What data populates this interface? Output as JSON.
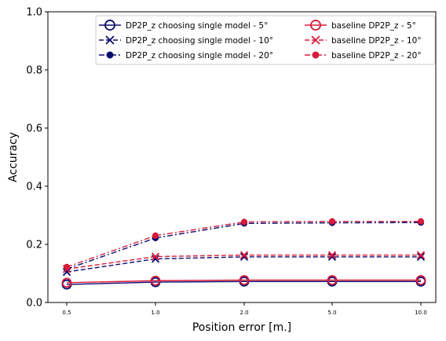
{
  "chart_data": {
    "type": "line",
    "title": "",
    "xlabel": "Position error [m.]",
    "ylabel": "Accuracy",
    "ylim": [
      0,
      1
    ],
    "y_ticks": [
      "0.0",
      "0.2",
      "0.4",
      "0.6",
      "0.8",
      "1.0"
    ],
    "categories": [
      "0.5",
      "1.0",
      "2.0",
      "5.0",
      "10.0"
    ],
    "grid": false,
    "legend_position": "top-right",
    "series": [
      {
        "name": "DP2P_z choosing single model - 5°",
        "values": [
          0.062,
          0.07,
          0.072,
          0.072,
          0.072
        ],
        "color": "#0b0b6e",
        "dash": "solid",
        "marker": "open-circle"
      },
      {
        "name": "DP2P_z choosing single model - 10°",
        "values": [
          0.105,
          0.15,
          0.157,
          0.157,
          0.157
        ],
        "color": "#0b0b6e",
        "dash": "dashed",
        "marker": "x"
      },
      {
        "name": "DP2P_z choosing single model - 20°",
        "values": [
          0.115,
          0.222,
          0.272,
          0.274,
          0.275
        ],
        "color": "#0b0b6e",
        "dash": "dashdot",
        "marker": "filled-circle"
      },
      {
        "name": "baseline DP2P_z - 5°",
        "values": [
          0.068,
          0.075,
          0.077,
          0.077,
          0.077
        ],
        "color": "#d81b3c",
        "dash": "solid",
        "marker": "open-circle"
      },
      {
        "name": "baseline DP2P_z - 10°",
        "values": [
          0.115,
          0.158,
          0.163,
          0.163,
          0.163
        ],
        "color": "#d81b3c",
        "dash": "dashed",
        "marker": "x"
      },
      {
        "name": "baseline DP2P_z - 20°",
        "values": [
          0.122,
          0.23,
          0.277,
          0.279,
          0.279
        ],
        "color": "#d81b3c",
        "dash": "dashdot",
        "marker": "filled-circle"
      }
    ]
  }
}
